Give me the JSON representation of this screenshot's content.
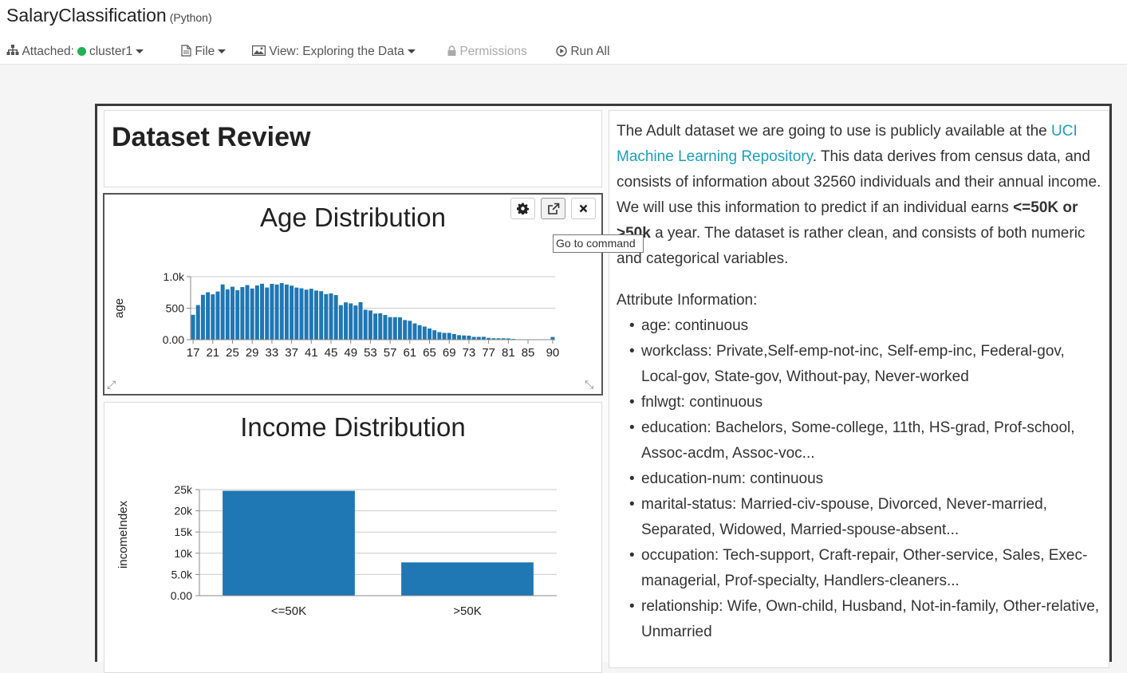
{
  "notebook": {
    "title": "SalaryClassification",
    "language": "(Python)"
  },
  "toolbar": {
    "attached_label": "Attached:",
    "cluster_name": "cluster1",
    "cluster_status_color": "#1fb155",
    "file_label": "File",
    "view_label": "View: Exploring the Data",
    "permissions_label": "Permissions",
    "run_all_label": "Run All"
  },
  "dashboard": {
    "title": "Dataset Review",
    "tooltip": "Go to command",
    "text": {
      "p1_a": "The Adult dataset we are going to use is publicly available at the ",
      "p1_link": "UCI Machine Learning Repository",
      "p1_b": ". This data derives from census data, and consists of information about 32560 individuals and their annual income. We will use this information to predict if an individual earns ",
      "p1_bold": "<=50K or >50k",
      "p1_c": " a year. The dataset is rather clean, and consists of both numeric and categorical variables.",
      "attr_heading": "Attribute Information:",
      "attributes": [
        "age: continuous",
        "workclass: Private,Self-emp-not-inc, Self-emp-inc, Federal-gov, Local-gov, State-gov, Without-pay, Never-worked",
        "fnlwgt: continuous",
        "education: Bachelors, Some-college, 11th, HS-grad, Prof-school, Assoc-acdm, Assoc-voc...",
        "education-num: continuous",
        "marital-status: Married-civ-spouse, Divorced, Never-married, Separated, Widowed, Married-spouse-absent...",
        "occupation: Tech-support, Craft-repair, Other-service, Sales, Exec-managerial, Prof-specialty, Handlers-cleaners...",
        "relationship: Wife, Own-child, Husband, Not-in-family, Other-relative, Unmarried"
      ]
    }
  },
  "chart_data": [
    {
      "type": "bar",
      "title": "Age Distribution",
      "ylabel": "age",
      "xlabel": "",
      "ylim": [
        0,
        1000
      ],
      "yticks": [
        "0.00",
        "500",
        "1.0k"
      ],
      "xtick_labels": [
        "17",
        "21",
        "25",
        "29",
        "33",
        "37",
        "41",
        "45",
        "49",
        "53",
        "57",
        "61",
        "65",
        "69",
        "73",
        "77",
        "81",
        "85",
        "90"
      ],
      "x": [
        17,
        18,
        19,
        20,
        21,
        22,
        23,
        24,
        25,
        26,
        27,
        28,
        29,
        30,
        31,
        32,
        33,
        34,
        35,
        36,
        37,
        38,
        39,
        40,
        41,
        42,
        43,
        44,
        45,
        46,
        47,
        48,
        49,
        50,
        51,
        52,
        53,
        54,
        55,
        56,
        57,
        58,
        59,
        60,
        61,
        62,
        63,
        64,
        65,
        66,
        67,
        68,
        69,
        70,
        71,
        72,
        73,
        74,
        75,
        76,
        77,
        78,
        79,
        80,
        81,
        82,
        83,
        84,
        85,
        86,
        88,
        90
      ],
      "values": [
        395,
        550,
        712,
        753,
        720,
        765,
        877,
        798,
        841,
        785,
        835,
        867,
        813,
        861,
        888,
        828,
        886,
        876,
        898,
        876,
        858,
        827,
        816,
        794,
        808,
        780,
        770,
        724,
        734,
        708,
        549,
        592,
        577,
        543,
        595,
        476,
        464,
        415,
        419,
        392,
        358,
        358,
        355,
        312,
        300,
        258,
        230,
        208,
        178,
        150,
        120,
        108,
        108,
        89,
        72,
        67,
        64,
        45,
        45,
        46,
        29,
        23,
        22,
        22,
        20,
        12,
        6,
        6,
        3,
        1,
        3,
        43
      ],
      "color": "#1f77b4"
    },
    {
      "type": "bar",
      "title": "Income Distribution",
      "ylabel": "incomeIndex",
      "xlabel": "",
      "ylim": [
        0,
        25000
      ],
      "yticks": [
        "0.00",
        "5.0k",
        "10k",
        "15k",
        "20k",
        "25k"
      ],
      "categories": [
        "<=50K",
        ">50K"
      ],
      "values": [
        24719,
        7841
      ],
      "color": "#1f77b4"
    }
  ]
}
